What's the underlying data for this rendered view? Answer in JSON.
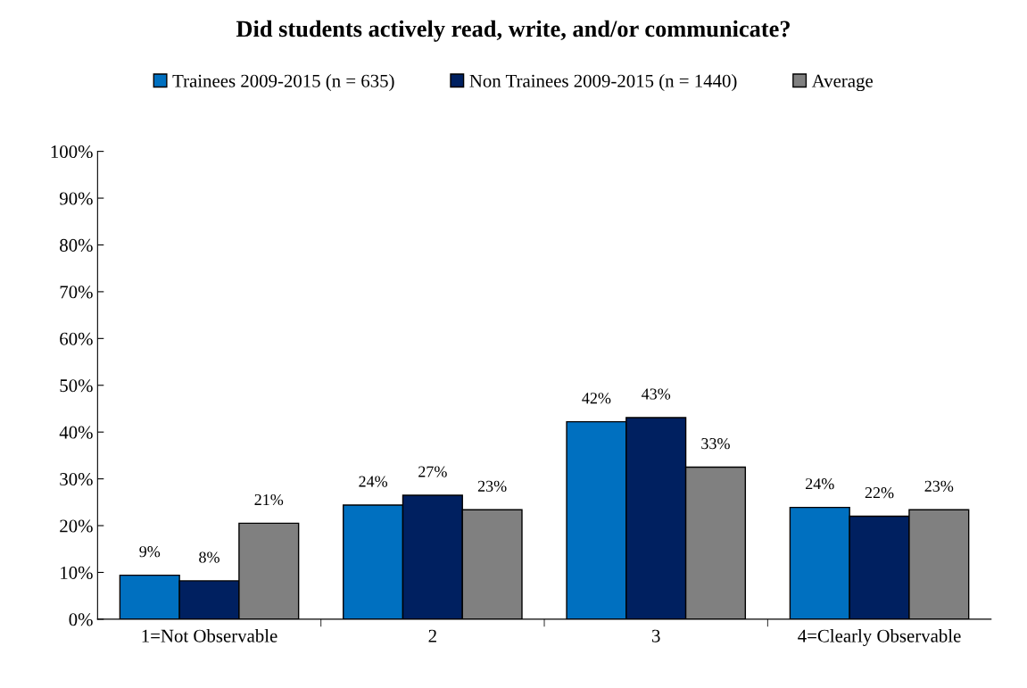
{
  "chart_data": {
    "type": "bar",
    "title": "Did students actively read, write, and/or communicate?",
    "categories": [
      "1=Not Observable",
      "2",
      "3",
      "4=Clearly Observable"
    ],
    "series": [
      {
        "name": "Trainees 2009-2015 (n = 635)",
        "color": "#0070c0",
        "values": [
          9.4,
          24.4,
          42.2,
          23.9
        ],
        "value_labels": [
          "9%",
          "24%",
          "42%",
          "24%"
        ]
      },
      {
        "name": "Non Trainees 2009-2015 (n = 1440)",
        "color": "#002060",
        "values": [
          8.2,
          26.5,
          43.1,
          22.0
        ],
        "value_labels": [
          "8%",
          "27%",
          "43%",
          "22%"
        ]
      },
      {
        "name": "Average",
        "color": "#808080",
        "values": [
          20.5,
          23.4,
          32.5,
          23.4
        ],
        "value_labels": [
          "21%",
          "23%",
          "33%",
          "23%"
        ]
      }
    ],
    "ylim": [
      0,
      100
    ],
    "yticks": [
      {
        "value": 0,
        "label": "0%"
      },
      {
        "value": 10,
        "label": "10%"
      },
      {
        "value": 20,
        "label": "20%"
      },
      {
        "value": 30,
        "label": "30%"
      },
      {
        "value": 40,
        "label": "40%"
      },
      {
        "value": 50,
        "label": "50%"
      },
      {
        "value": 60,
        "label": "60%"
      },
      {
        "value": 70,
        "label": "70%"
      },
      {
        "value": 80,
        "label": "80%"
      },
      {
        "value": 90,
        "label": "90%"
      },
      {
        "value": 100,
        "label": "100%"
      }
    ],
    "grid": false,
    "legend": "top"
  }
}
